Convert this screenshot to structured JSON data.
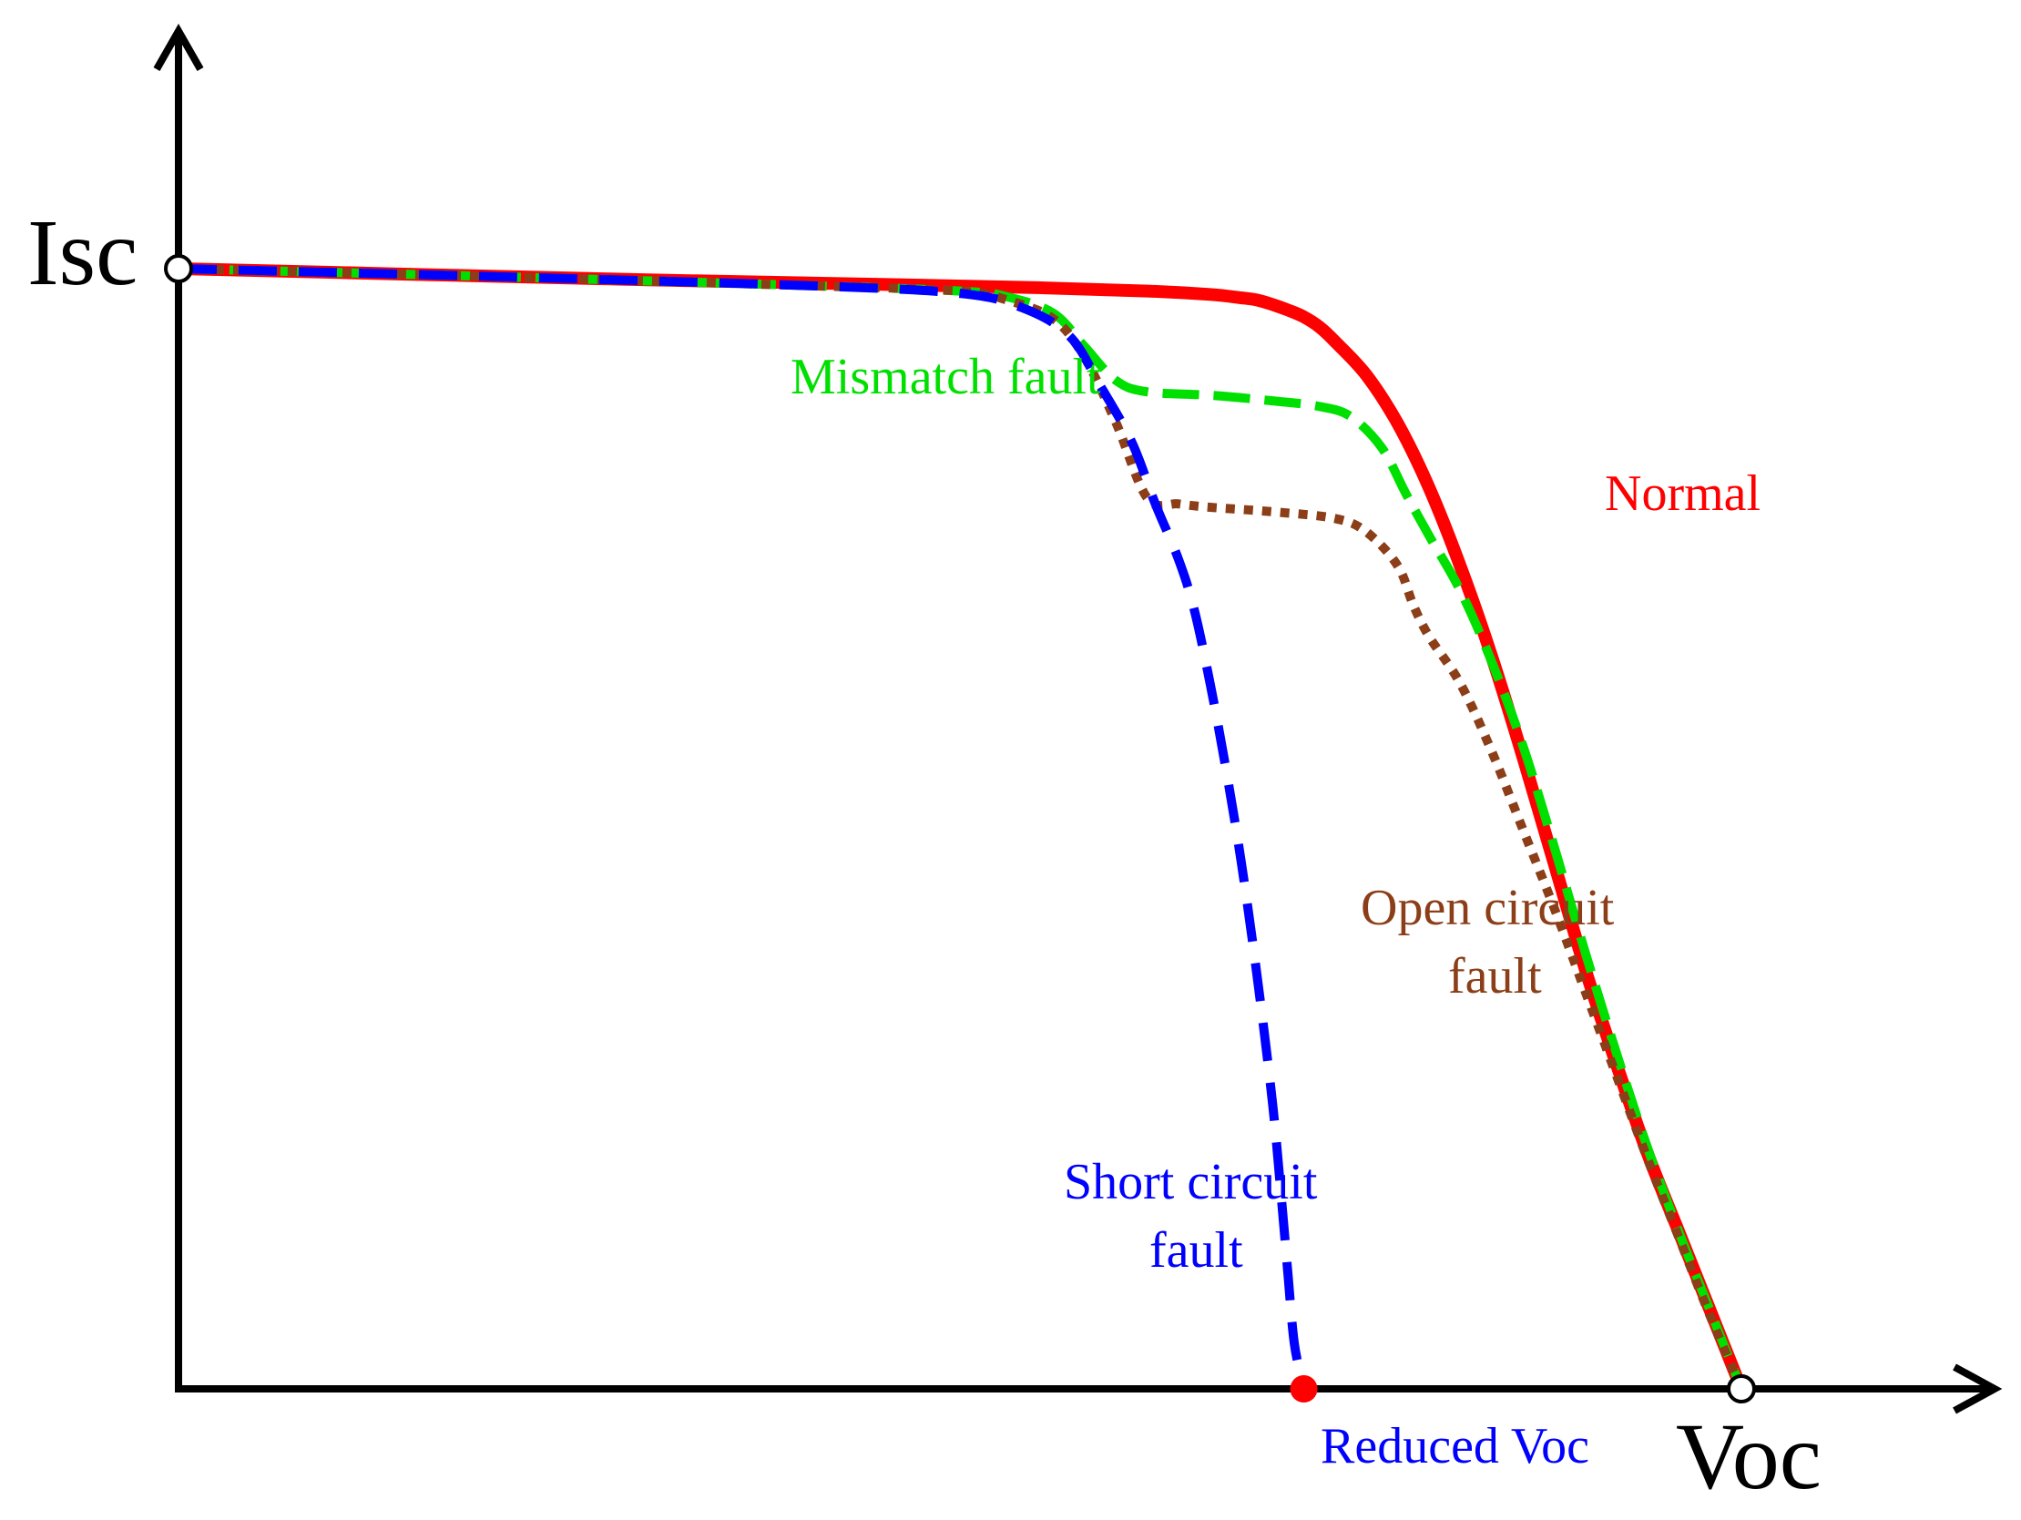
{
  "chart_data": {
    "type": "line",
    "title": "",
    "xlabel": "",
    "ylabel": "",
    "xlim": [
      0,
      1.0
    ],
    "ylim": [
      0,
      1.0
    ],
    "grid": false,
    "axis_labels": {
      "isc": "Isc",
      "voc": "Voc",
      "reduced_voc": "Reduced Voc"
    },
    "colors": {
      "normal": "#ff0000",
      "mismatch": "#00e000",
      "open": "#8b3e17",
      "short": "#0000ff",
      "reduced_voc_marker": "#ff0000",
      "axis": "#000000"
    },
    "series": [
      {
        "key": "normal",
        "label_lines": [
          "Normal"
        ],
        "x": [
          0,
          0.15,
          0.3,
          0.45,
          0.55,
          0.62,
          0.66,
          0.68,
          0.69,
          0.7,
          0.71,
          0.72,
          0.73,
          0.74,
          0.76,
          0.78,
          0.8,
          0.82,
          0.84,
          0.86,
          0.88,
          0.9,
          0.92,
          0.94,
          0.96,
          0.98,
          1.0
        ],
        "y": [
          1.0,
          0.995,
          0.99,
          0.986,
          0.983,
          0.98,
          0.977,
          0.974,
          0.972,
          0.968,
          0.963,
          0.957,
          0.948,
          0.935,
          0.905,
          0.862,
          0.805,
          0.735,
          0.655,
          0.565,
          0.47,
          0.375,
          0.29,
          0.21,
          0.14,
          0.07,
          0.0
        ]
      },
      {
        "key": "mismatch",
        "label_lines": [
          "Mismatch fault"
        ],
        "x": [
          0,
          0.2,
          0.4,
          0.5,
          0.53,
          0.56,
          0.58,
          0.6,
          0.62,
          0.66,
          0.7,
          0.73,
          0.75,
          0.77,
          0.785,
          0.8,
          0.82,
          0.84,
          0.86,
          0.88,
          0.9,
          0.92,
          0.94,
          0.96,
          0.98,
          1.0
        ],
        "y": [
          1.0,
          0.993,
          0.985,
          0.98,
          0.975,
          0.96,
          0.93,
          0.9,
          0.89,
          0.887,
          0.882,
          0.877,
          0.868,
          0.84,
          0.8,
          0.762,
          0.713,
          0.65,
          0.575,
          0.485,
          0.39,
          0.3,
          0.215,
          0.14,
          0.07,
          0.0
        ]
      },
      {
        "key": "open",
        "label_lines": [
          "Open circuit",
          "fault"
        ],
        "x": [
          0,
          0.2,
          0.4,
          0.5,
          0.53,
          0.56,
          0.58,
          0.6,
          0.62,
          0.64,
          0.66,
          0.7,
          0.74,
          0.76,
          0.78,
          0.79,
          0.8,
          0.82,
          0.84,
          0.86,
          0.88,
          0.9,
          0.92,
          0.94,
          0.96,
          0.98,
          1.0
        ],
        "y": [
          1.0,
          0.993,
          0.985,
          0.98,
          0.972,
          0.955,
          0.92,
          0.862,
          0.795,
          0.79,
          0.787,
          0.783,
          0.777,
          0.765,
          0.735,
          0.7,
          0.672,
          0.63,
          0.57,
          0.5,
          0.43,
          0.355,
          0.28,
          0.205,
          0.135,
          0.065,
          0.0
        ]
      },
      {
        "key": "short",
        "label_lines": [
          "Short circuit",
          "fault"
        ],
        "x": [
          0,
          0.2,
          0.4,
          0.5,
          0.54,
          0.57,
          0.59,
          0.61,
          0.625,
          0.64,
          0.65,
          0.66,
          0.67,
          0.68,
          0.69,
          0.7,
          0.706,
          0.71,
          0.714,
          0.72
        ],
        "y": [
          1.0,
          0.993,
          0.985,
          0.978,
          0.965,
          0.94,
          0.895,
          0.845,
          0.79,
          0.74,
          0.695,
          0.63,
          0.555,
          0.47,
          0.37,
          0.255,
          0.165,
          0.1,
          0.04,
          0.0
        ]
      }
    ],
    "markers": {
      "reduced_voc_x": 0.72
    }
  }
}
